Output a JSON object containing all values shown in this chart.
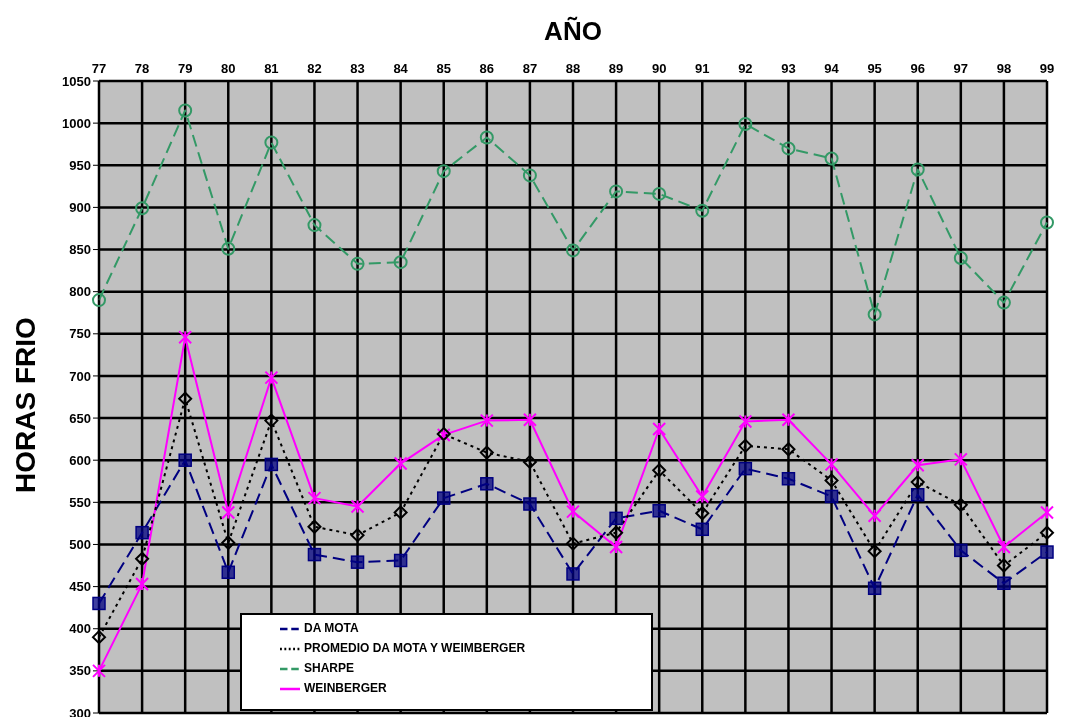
{
  "chart_data": {
    "type": "line",
    "xlabel": "AÑO",
    "ylabel": "HORAS FRIO",
    "categories": [
      "77",
      "78",
      "79",
      "80",
      "81",
      "82",
      "83",
      "84",
      "85",
      "86",
      "87",
      "88",
      "89",
      "90",
      "91",
      "92",
      "93",
      "94",
      "95",
      "96",
      "97",
      "98",
      "99"
    ],
    "ylim": [
      300,
      1050
    ],
    "yticks": [
      300,
      350,
      400,
      450,
      500,
      550,
      600,
      650,
      700,
      750,
      800,
      850,
      900,
      950,
      1000,
      1050
    ],
    "grid": true,
    "legend": "bottom",
    "series": [
      {
        "name": "DA MOTA",
        "color": "#000080",
        "marker": "square",
        "line_style": "dashed",
        "values": [
          430,
          514,
          600,
          467,
          595,
          488,
          479,
          481,
          555,
          572,
          548,
          465,
          531,
          540,
          518,
          590,
          578,
          557,
          448,
          559,
          493,
          454,
          491
        ]
      },
      {
        "name": "WEINBERGER",
        "color": "#ff00ff",
        "marker": "cross",
        "line_style": "solid",
        "values": [
          350,
          453,
          746,
          538,
          698,
          555,
          545,
          596,
          630,
          647,
          648,
          539,
          497,
          637,
          557,
          646,
          648,
          595,
          534,
          594,
          601,
          497,
          538
        ]
      },
      {
        "name": "SHARPE",
        "color": "#339966",
        "marker": "circle",
        "line_style": "dashed",
        "values": [
          790,
          899,
          1015,
          851,
          977,
          879,
          833,
          835,
          943,
          983,
          938,
          849,
          919,
          916,
          896,
          999,
          970,
          958,
          773,
          945,
          840,
          787,
          882
        ]
      },
      {
        "name": "PROMEDIO DA MOTA Y WEIMBERGER",
        "color": "#000000",
        "marker": "diamond",
        "line_style": "dotted",
        "values": [
          390,
          483,
          673,
          502,
          647,
          521,
          511,
          538,
          631,
          609,
          598,
          501,
          514,
          588,
          537,
          617,
          613,
          576,
          492,
          574,
          547,
          475,
          514
        ]
      }
    ]
  }
}
